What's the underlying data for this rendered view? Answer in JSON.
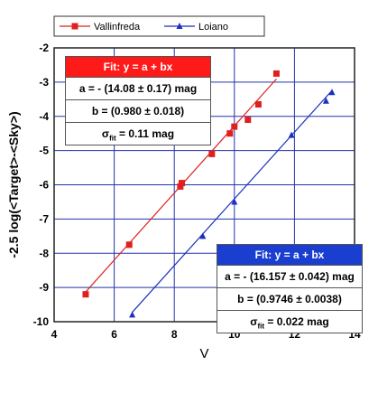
{
  "chart_data": {
    "type": "scatter",
    "xlabel": "V",
    "ylabel": "-2.5 log(<Target>-<Sky>)",
    "xlim": [
      4,
      14
    ],
    "ylim": [
      -10,
      -2
    ],
    "xticks": [
      4,
      6,
      8,
      10,
      12,
      14
    ],
    "yticks": [
      -2,
      -3,
      -4,
      -5,
      -6,
      -7,
      -8,
      -9,
      -10
    ],
    "grid": true,
    "legend_position": "top",
    "series": [
      {
        "name": "Vallinfreda",
        "color": "#e0201e",
        "marker": "square",
        "points": [
          [
            5.05,
            -9.2
          ],
          [
            6.5,
            -7.75
          ],
          [
            8.2,
            -6.05
          ],
          [
            8.25,
            -5.95
          ],
          [
            9.25,
            -5.1
          ],
          [
            9.85,
            -4.5
          ],
          [
            10.0,
            -4.3
          ],
          [
            10.45,
            -4.1
          ],
          [
            10.8,
            -3.65
          ],
          [
            11.4,
            -2.75
          ]
        ],
        "fit": {
          "a": -14.08,
          "b": 0.98
        }
      },
      {
        "name": "Loiano",
        "color": "#1c2fbf",
        "marker": "triangle",
        "points": [
          [
            6.6,
            -9.8
          ],
          [
            8.95,
            -7.5
          ],
          [
            10.0,
            -6.5
          ],
          [
            11.9,
            -4.55
          ],
          [
            13.05,
            -3.55
          ],
          [
            13.25,
            -3.3
          ]
        ],
        "fit": {
          "a": -16.157,
          "b": 0.9746
        }
      }
    ],
    "annotations": [
      {
        "header": "Fit: y = a + bx",
        "header_color": "#ff1a1a",
        "rows": [
          "a = - (14.08 ± 0.17) mag",
          "b = (0.980 ± 0.018)"
        ],
        "sigma_label": "σ",
        "sigma_sub": "fit",
        "sigma_value": " = 0.11 mag"
      },
      {
        "header": "Fit: y = a + bx",
        "header_color": "#1a3fd0",
        "rows": [
          "a = - (16.157 ± 0.042) mag",
          "b = (0.9746 ± 0.0038)"
        ],
        "sigma_label": "σ",
        "sigma_sub": "fit",
        "sigma_value": " = 0.022 mag"
      }
    ]
  }
}
